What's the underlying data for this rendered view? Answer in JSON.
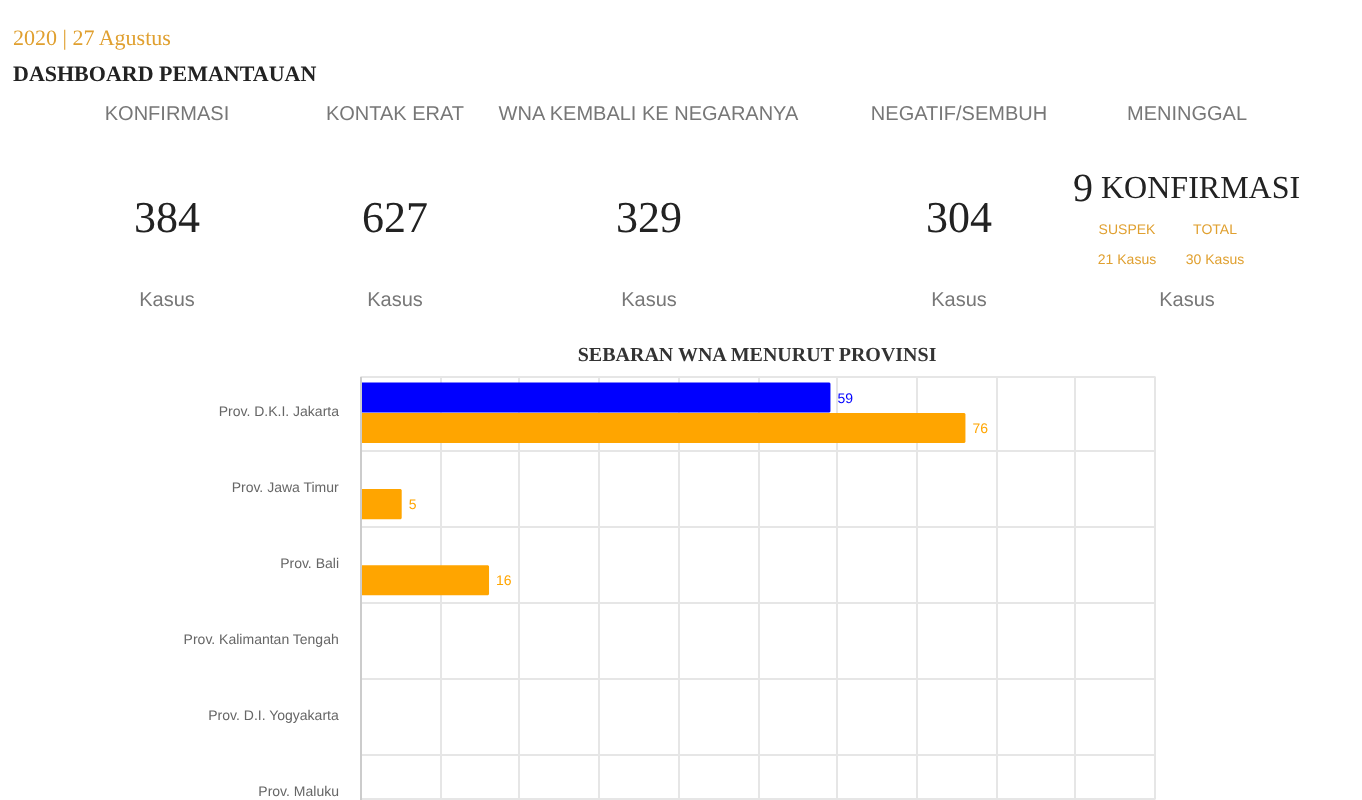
{
  "chart_data": [
    {
      "type": "other",
      "subtitle": "2020 | 27 Agustus",
      "title": "DASHBOARD PEMANTAUAN",
      "categories": [
        "KONFIRMASI",
        "KONTAK ERAT",
        "WNA KEMBALI KE NEGARANYA",
        "NEGATIF/SEMBUH",
        "MENINGGAL"
      ],
      "values": [
        384,
        627,
        329,
        304,
        9
      ],
      "data_labels": true,
      "annotations": [
        "KONFIRMASI",
        "SUSPEK",
        "TOTAL",
        "21 Kasus",
        "30 Kasus",
        "Kasus",
        "Kasus",
        "Kasus",
        "Kasus",
        "Kasus"
      ]
    },
    {
      "type": "bar",
      "orientation": "horizontal",
      "title": "SEBARAN WNA MENURUT PROVINSI",
      "categories": [
        "Prov. D.K.I. Jakarta",
        "Prov. Jawa Timur",
        "Prov. Bali",
        "Prov. Kalimantan Tengah",
        "Prov. D.I. Yogyakarta",
        "Prov. Maluku"
      ],
      "series": [
        {
          "color": "#0000ff",
          "values": [
            59,
            null,
            null,
            null,
            null,
            null
          ]
        },
        {
          "color": "#ffa500",
          "values": [
            76,
            5,
            16,
            null,
            null,
            null
          ]
        }
      ],
      "xlim": [
        0,
        100
      ],
      "xticks": [
        {
          "value": 0,
          "label": null
        },
        {
          "value": 10,
          "label": null
        },
        {
          "value": 20,
          "label": null
        },
        {
          "value": 30,
          "label": null
        },
        {
          "value": 40,
          "label": null
        },
        {
          "value": 50,
          "label": null
        },
        {
          "value": 60,
          "label": null
        },
        {
          "value": 70,
          "label": null
        },
        {
          "value": 80,
          "label": null
        },
        {
          "value": 90,
          "label": null
        },
        {
          "value": 100,
          "label": null
        }
      ],
      "tick_labels": "y",
      "grid": true,
      "data_labels": true
    }
  ]
}
